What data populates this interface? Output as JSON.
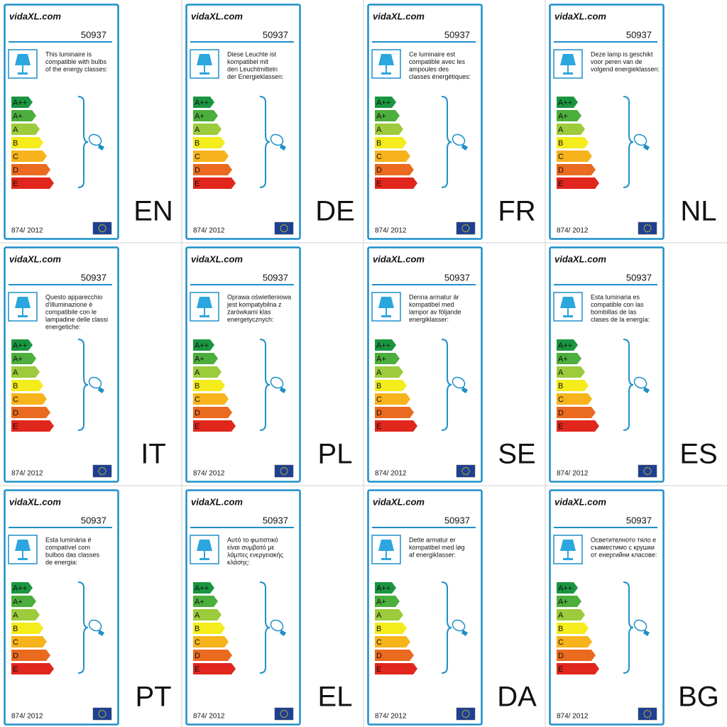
{
  "brand": "vidaXL.com",
  "model": "50937",
  "regulation": "874/ 2012",
  "classes": [
    {
      "label": "A++",
      "color": "#1a9640"
    },
    {
      "label": "A+",
      "color": "#4cae3c"
    },
    {
      "label": "A",
      "color": "#9ccb3b"
    },
    {
      "label": "B",
      "color": "#f4ec1b"
    },
    {
      "label": "C",
      "color": "#f6b31b"
    },
    {
      "label": "D",
      "color": "#ea6a1f"
    },
    {
      "label": "E",
      "color": "#e0261d"
    }
  ],
  "labels": [
    {
      "lang": "EN",
      "text": [
        "This luminaire is",
        "compatible with bulbs",
        "of the energy classes:"
      ]
    },
    {
      "lang": "DE",
      "text": [
        "Diese Leuchte ist",
        "kompatibel mit",
        "den Leuchtmitteln",
        "der Energieklassen:"
      ]
    },
    {
      "lang": "FR",
      "text": [
        "Ce luminaire est",
        "compatible avec les",
        "ampoules des",
        "classes énergétiques:"
      ]
    },
    {
      "lang": "NL",
      "text": [
        "Deze lamp is geschikt",
        "voor peren van de",
        "volgend energieklassen:"
      ]
    },
    {
      "lang": "IT",
      "text": [
        "Questo apparecchio",
        "d'illuminazione è",
        "compatibile con le",
        "lampadine delle classi",
        "energetiche:"
      ]
    },
    {
      "lang": "PL",
      "text": [
        "Oprawa oświetleniowa",
        "jest kompatybilna z",
        "żarówkami klas",
        "energetycznych:"
      ]
    },
    {
      "lang": "SE",
      "text": [
        "Denna armatur är",
        "kompatibel med",
        "lampor av följande",
        "energiklasser:"
      ]
    },
    {
      "lang": "ES",
      "text": [
        "Esta luminaria es",
        "compatible con las",
        "bombillas de las",
        "clases de la energía:"
      ]
    },
    {
      "lang": "PT",
      "text": [
        "Esta luminária é",
        "compatível com",
        "bulbos das classes",
        "de energia:"
      ]
    },
    {
      "lang": "EL",
      "text": [
        "Αυτό το φωτιστικό",
        "είναι συμβατό με",
        "λάμπες ενεργειακής",
        "κλάσης:"
      ]
    },
    {
      "lang": "DA",
      "text": [
        "Dette armatur er",
        "kompatibel med løg",
        "af energiklasser:"
      ]
    },
    {
      "lang": "BG",
      "text": [
        "Осветителното тяло е",
        "съвместимо с крушки",
        "от енергийни класове:"
      ]
    }
  ]
}
